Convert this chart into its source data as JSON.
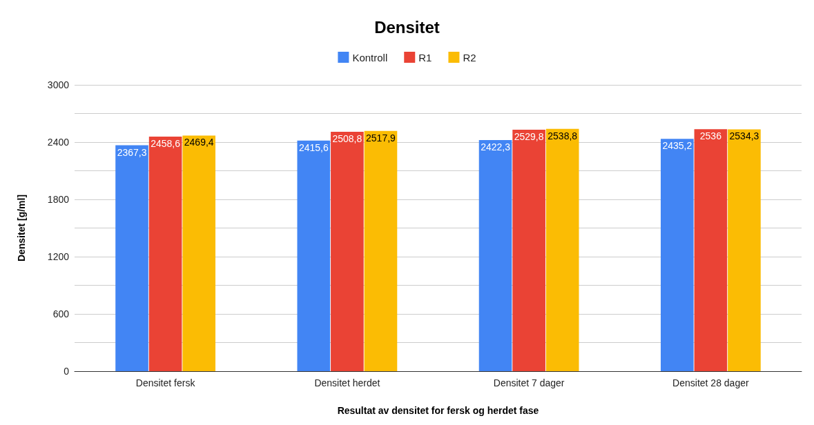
{
  "chart_data": {
    "type": "bar",
    "title": "Densitet",
    "xlabel": "Resultat av densitet for fersk og herdet fase",
    "ylabel": "Densitet [g/ml]",
    "categories": [
      "Densitet fersk",
      "Densitet herdet",
      "Densitet 7 dager",
      "Densitet 28 dager"
    ],
    "series": [
      {
        "name": "Kontroll",
        "color": "#4285f4",
        "values": [
          2367.3,
          2415.6,
          2422.3,
          2435.2
        ],
        "value_labels": [
          "2367,3",
          "2415,6",
          "2422,3",
          "2435,2"
        ]
      },
      {
        "name": "R1",
        "color": "#ea4335",
        "values": [
          2458.6,
          2508.8,
          2529.8,
          2536
        ],
        "value_labels": [
          "2458,6",
          "2508,8",
          "2529,8",
          "2536"
        ]
      },
      {
        "name": "R2",
        "color": "#fbbc04",
        "values": [
          2469.4,
          2517.9,
          2538.8,
          2534.3
        ],
        "value_labels": [
          "2469,4",
          "2517,9",
          "2538,8",
          "2534,3"
        ]
      }
    ],
    "ylim": [
      0,
      3000
    ],
    "yticks": [
      0,
      {
        "value": 300,
        "label": null
      },
      600,
      {
        "value": 900,
        "label": null
      },
      1200,
      {
        "value": 1500,
        "label": null
      },
      1800,
      {
        "value": 2100,
        "label": null
      },
      2400,
      {
        "value": 2700,
        "label": null
      },
      3000
    ],
    "grid": "y",
    "legend": "top"
  }
}
